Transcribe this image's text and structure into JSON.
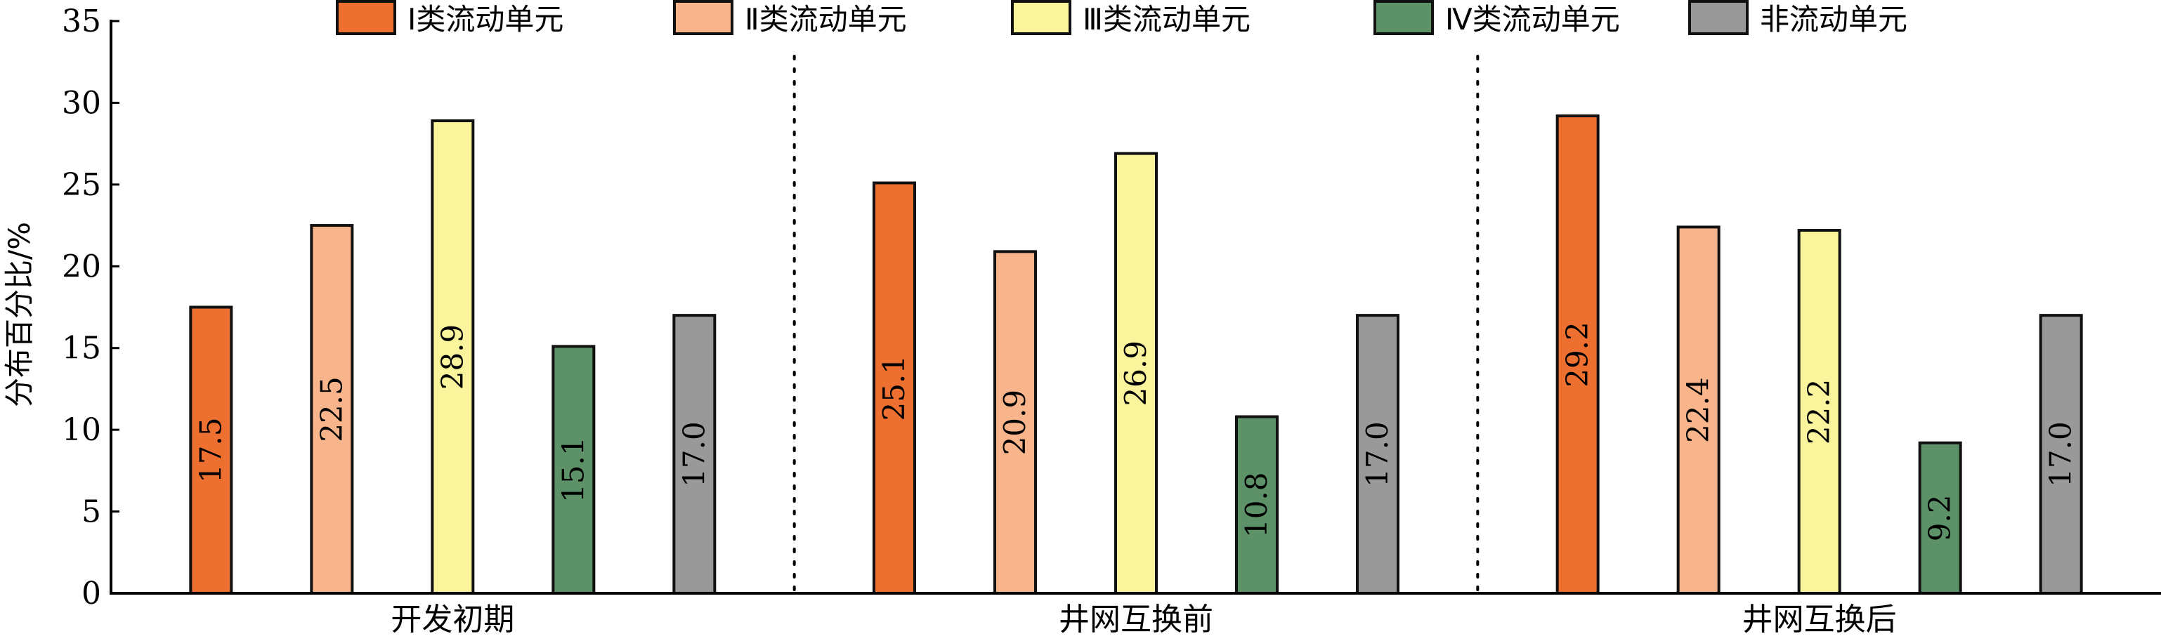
{
  "chart_data": {
    "type": "bar",
    "ylabel": "分布百分比/%",
    "xlabel": "",
    "ylim": [
      0,
      35
    ],
    "yticks": [
      "0",
      "5",
      "10",
      "15",
      "20",
      "25",
      "30",
      "35"
    ],
    "categories": [
      "开发初期",
      "井网互换前",
      "井网互换后"
    ],
    "legend_position": "top",
    "grid": false,
    "series": [
      {
        "name": "Ⅰ类流动单元",
        "color": "#ed7031",
        "values": [
          17.5,
          25.1,
          29.2
        ],
        "labels": [
          "17.5",
          "25.1",
          "29.2"
        ]
      },
      {
        "name": "Ⅱ类流动单元",
        "color": "#f8b58b",
        "values": [
          22.5,
          20.9,
          22.4
        ],
        "labels": [
          "22.5",
          "20.9",
          "22.4"
        ]
      },
      {
        "name": "Ⅲ类流动单元",
        "color": "#faf49d",
        "values": [
          28.9,
          26.9,
          22.2
        ],
        "labels": [
          "28.9",
          "26.9",
          "22.2"
        ]
      },
      {
        "name": "Ⅳ类流动单元",
        "color": "#5d9268",
        "values": [
          15.1,
          10.8,
          9.2
        ],
        "labels": [
          "15.1",
          "10.8",
          "9.2"
        ]
      },
      {
        "name": "非流动单元",
        "color": "#999999",
        "values": [
          17.0,
          17.0,
          17.0
        ],
        "labels": [
          "17.0",
          "17.0",
          "17.0"
        ]
      }
    ]
  }
}
